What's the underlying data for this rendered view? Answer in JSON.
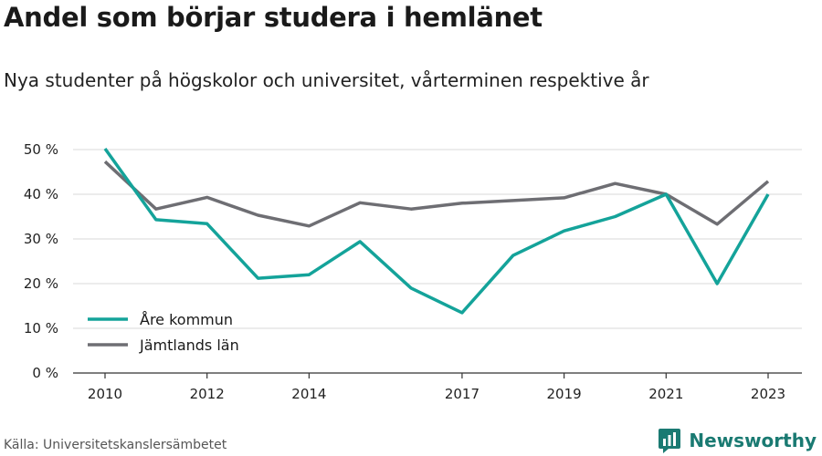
{
  "chart_data": {
    "type": "line",
    "title": "Andel som börjar studera i hemlänet",
    "subtitle": "Nya studenter på högskolor och universitet, vårterminen respektive år",
    "x": [
      2010,
      2011,
      2012,
      2013,
      2014,
      2015,
      2016,
      2017,
      2018,
      2019,
      2020,
      2021,
      2022,
      2023
    ],
    "x_tick_labels": [
      "2010",
      "2012",
      "2014",
      "2017",
      "2019",
      "2021",
      "2023"
    ],
    "y_tick_values": [
      0,
      10,
      20,
      30,
      40,
      50
    ],
    "y_tick_labels": [
      "0 %",
      "10 %",
      "20 %",
      "30 %",
      "40 %",
      "50 %"
    ],
    "ylim": [
      0,
      50
    ],
    "grid": true,
    "legend_position": "bottom-left",
    "series": [
      {
        "name": "Åre kommun",
        "color": "#14a39a",
        "values": [
          50.2,
          34.3,
          33.4,
          21.2,
          22.0,
          29.4,
          19.0,
          13.5,
          26.3,
          31.8,
          35.0,
          40.0,
          20.0,
          40.0
        ]
      },
      {
        "name": "Jämtlands län",
        "color": "#6e6e73",
        "values": [
          47.3,
          36.7,
          39.3,
          35.3,
          32.9,
          38.1,
          36.7,
          38.0,
          38.6,
          39.2,
          42.4,
          40.0,
          33.3,
          42.9
        ]
      }
    ]
  },
  "source": "Källa: Universitetskanslersämbetet",
  "brand": {
    "name": "Newsworthy",
    "color": "#1a7a72",
    "icon": "bar-chart-logo-icon"
  }
}
